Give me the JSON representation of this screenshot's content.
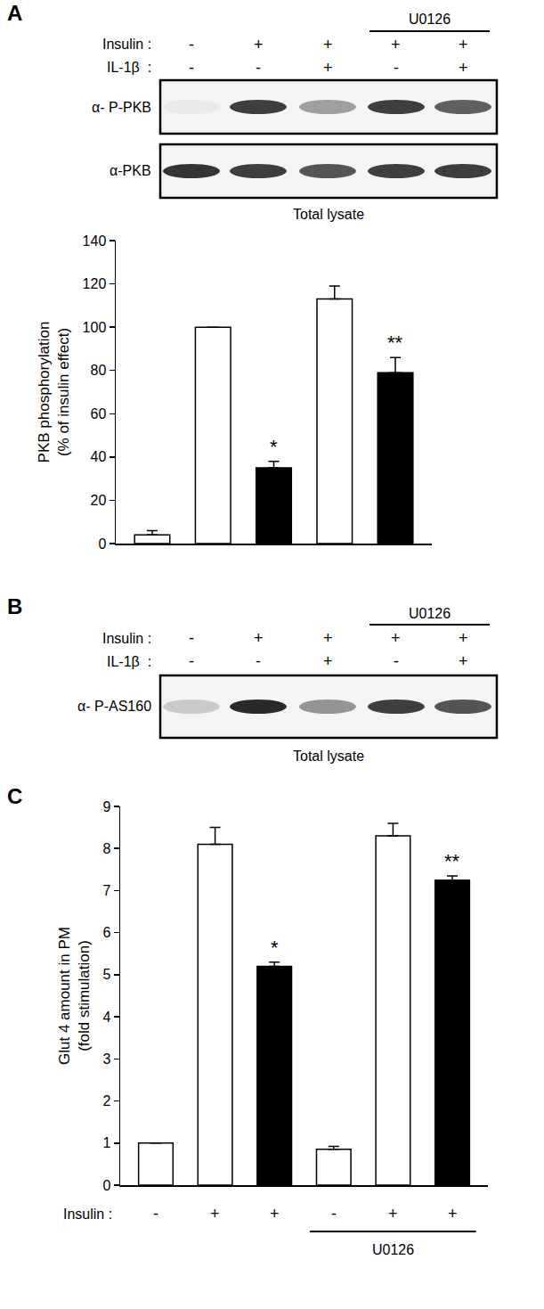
{
  "panel_labels": [
    "A",
    "B",
    "C"
  ],
  "blots": [
    {
      "treatment_rows": [
        {
          "label": "Insulin :",
          "signs": [
            "-",
            "+",
            "+",
            "+",
            "+"
          ]
        },
        {
          "label": "IL-1β  :",
          "signs": [
            "-",
            "-",
            "+",
            "-",
            "+"
          ]
        }
      ],
      "bracket": {
        "label": "U0126",
        "from": 3,
        "to": 4
      },
      "membranes": [
        {
          "label": "α- P-PKB",
          "band_intensity": [
            0.05,
            0.85,
            0.4,
            0.85,
            0.7
          ]
        },
        {
          "label": "α-PKB",
          "band_intensity": [
            0.9,
            0.85,
            0.75,
            0.85,
            0.85
          ]
        }
      ],
      "caption": "Total lysate"
    },
    {
      "treatment_rows": [
        {
          "label": "Insulin :",
          "signs": [
            "-",
            "+",
            "+",
            "+",
            "+"
          ]
        },
        {
          "label": "IL-1β  :",
          "signs": [
            "-",
            "-",
            "+",
            "-",
            "+"
          ]
        }
      ],
      "bracket": {
        "label": "U0126",
        "from": 3,
        "to": 4
      },
      "membranes": [
        {
          "label": "α- P-AS160",
          "band_intensity": [
            0.2,
            0.95,
            0.45,
            0.85,
            0.75
          ]
        }
      ],
      "caption": "Total lysate"
    }
  ],
  "chart_data": [
    {
      "type": "bar",
      "categories": [
        null,
        null,
        null,
        null,
        null
      ],
      "values": [
        4,
        100,
        35,
        113,
        79
      ],
      "errors": [
        2,
        0,
        3,
        6,
        7
      ],
      "colors": [
        "#ffffff",
        "#ffffff",
        "#000000",
        "#ffffff",
        "#000000"
      ],
      "ylim": [
        0,
        140
      ],
      "yticks": [
        0,
        20,
        40,
        60,
        80,
        100,
        120,
        140
      ],
      "y_label": "PKB phosphorylation\n(% of insulin effect)",
      "tick_labels": "y",
      "grid": false,
      "annotations": [
        {
          "text": "*",
          "category": 2
        },
        {
          "text": "**",
          "category": 4
        }
      ]
    },
    {
      "type": "bar",
      "categories": [
        null,
        null,
        null,
        null,
        null,
        null
      ],
      "values": [
        1,
        8.1,
        5.2,
        0.85,
        8.3,
        7.25
      ],
      "errors": [
        0,
        0.4,
        0.1,
        0.07,
        0.3,
        0.1
      ],
      "colors": [
        "#ffffff",
        "#ffffff",
        "#000000",
        "#ffffff",
        "#ffffff",
        "#000000"
      ],
      "ylim": [
        0,
        9
      ],
      "yticks": [
        0,
        1,
        2,
        3,
        4,
        5,
        6,
        7,
        8,
        9
      ],
      "y_label": "Glut 4 amount in PM\n(fold stimulation)",
      "tick_labels": "y",
      "grid": false,
      "annotations": [
        {
          "text": "*",
          "category": 2
        },
        {
          "text": "**",
          "category": 5
        }
      ],
      "treatment_rows": [
        {
          "label": "Insulin :",
          "signs": [
            "-",
            "+",
            "+",
            "-",
            "+",
            "+"
          ]
        }
      ],
      "bracket": {
        "label": "U0126",
        "from": 3,
        "to": 5
      }
    }
  ]
}
